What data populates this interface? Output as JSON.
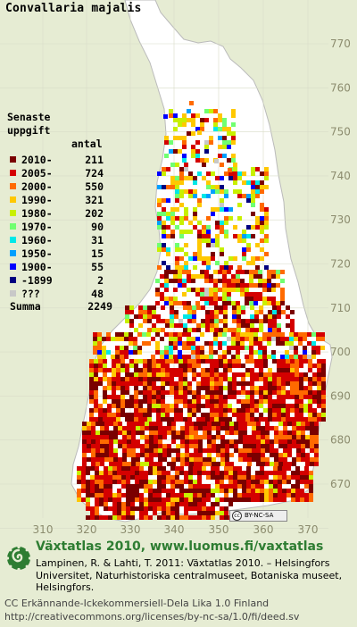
{
  "title": "Convallaria majalis",
  "legend": {
    "header_line1": "Senaste",
    "header_line2": "uppgift",
    "count_header": "antal",
    "rows": [
      {
        "label": "2010-",
        "count": "211",
        "color": "#7a0000"
      },
      {
        "label": "2005-",
        "count": "724",
        "color": "#d40000"
      },
      {
        "label": "2000-",
        "count": "550",
        "color": "#ff6a00"
      },
      {
        "label": "1990-",
        "count": "321",
        "color": "#ffc800"
      },
      {
        "label": "1980-",
        "count": "202",
        "color": "#c8f000"
      },
      {
        "label": "1970-",
        "count": "90",
        "color": "#70ff70"
      },
      {
        "label": "1960-",
        "count": "31",
        "color": "#00e8e8"
      },
      {
        "label": "1950-",
        "count": "15",
        "color": "#00a0ff"
      },
      {
        "label": "1900-",
        "count": "55",
        "color": "#0000ff"
      },
      {
        "label": "-1899",
        "count": "2",
        "color": "#000080"
      },
      {
        "label": "???",
        "count": "48",
        "color": "#c8c8c8"
      }
    ],
    "sum_label": "Summa",
    "sum_count": "2249"
  },
  "axes": {
    "x_ticks": [
      "310",
      "320",
      "330",
      "340",
      "350",
      "360",
      "370"
    ],
    "y_ticks": [
      "770",
      "760",
      "750",
      "740",
      "730",
      "720",
      "710",
      "700",
      "690",
      "680",
      "670"
    ]
  },
  "cc_badge": "BY-NC-SA",
  "footer": {
    "site": "Växtatlas 2010, www.luomus.fi/vaxtatlas",
    "citation": "Lampinen, R. & Lahti, T. 2011: Växtatlas 2010. – Helsingfors Universitet, Naturhistoriska centralmuseet, Botaniska museet, Helsingfors.",
    "license_line1": "CC Erkännande-Ickekommersiell-Dela Lika 1.0 Finland",
    "license_line2": "http://creativecommons.org/licenses/by-nc-sa/1.0/fi/deed.sv"
  }
}
